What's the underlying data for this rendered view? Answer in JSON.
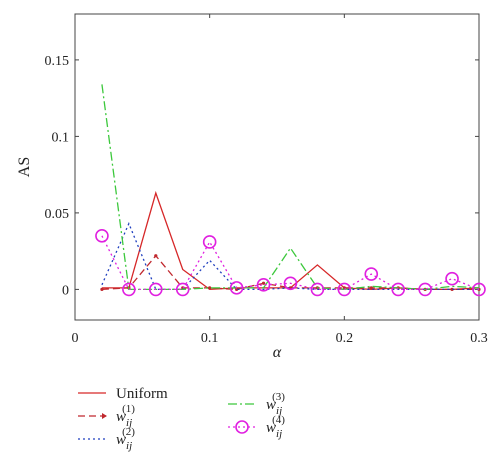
{
  "chart_data": {
    "type": "line",
    "xlabel": "α",
    "ylabel": "AS",
    "xlim": [
      0,
      0.3
    ],
    "ylim": [
      -0.02,
      0.18
    ],
    "x_ticks": [
      0,
      0.1,
      0.2,
      0.3
    ],
    "x_tick_labels": [
      "0",
      "0.1",
      "0.2",
      "0.3"
    ],
    "y_ticks": [
      0,
      0.05,
      0.1,
      0.15
    ],
    "y_tick_labels": [
      "0",
      "0.05",
      "0.1",
      "0.15"
    ],
    "grid": false,
    "legend_position": "bottom",
    "x": [
      0.02,
      0.04,
      0.06,
      0.08,
      0.1,
      0.12,
      0.14,
      0.16,
      0.18,
      0.2,
      0.22,
      0.24,
      0.26,
      0.28,
      0.3
    ],
    "series": [
      {
        "name": "Uniform",
        "color": "#d62728",
        "style": "solid",
        "values": [
          0.001,
          0.001,
          0.063,
          0.013,
          0.0,
          0.001,
          0.001,
          0.001,
          0.016,
          0.001,
          0.0,
          0.001,
          0.0,
          0.0,
          0.001
        ]
      },
      {
        "name": "w_ij^(1)",
        "color": "#c0282e",
        "style": "dashed",
        "values": [
          0.0,
          0.001,
          0.022,
          0.001,
          0.001,
          0.0,
          0.004,
          0.001,
          0.001,
          0.001,
          0.001,
          0.001,
          0.0,
          0.0,
          0.0
        ]
      },
      {
        "name": "w_ij^(2)",
        "color": "#1f3fbf",
        "style": "dotted",
        "values": [
          0.003,
          0.043,
          0.0,
          0.0,
          0.019,
          0.0,
          0.0,
          0.001,
          0.0,
          0.0,
          0.0,
          0.0,
          0.0,
          0.0,
          0.0
        ]
      },
      {
        "name": "w_ij^(3)",
        "color": "#3cc83c",
        "style": "dashdot",
        "values": [
          0.134,
          0.0,
          0.0,
          0.0,
          0.001,
          0.001,
          0.001,
          0.027,
          0.001,
          0.0,
          0.002,
          0.001,
          0.0,
          0.002,
          0.001
        ]
      },
      {
        "name": "w_ij^(4)",
        "color": "#e020e0",
        "style": "dotted-circle",
        "values": [
          0.035,
          0.0,
          0.0,
          0.0,
          0.031,
          0.001,
          0.003,
          0.004,
          0.0,
          0.0,
          0.01,
          0.0,
          0.0,
          0.007,
          0.0
        ]
      }
    ],
    "legend": [
      {
        "main": "Uniform",
        "sub": "",
        "sup": ""
      },
      {
        "main": "w",
        "sub": "ij",
        "sup": "(1)"
      },
      {
        "main": "w",
        "sub": "ij",
        "sup": "(2)"
      },
      {
        "main": "w",
        "sub": "ij",
        "sup": "(3)"
      },
      {
        "main": "w",
        "sub": "ij",
        "sup": "(4)"
      }
    ]
  }
}
